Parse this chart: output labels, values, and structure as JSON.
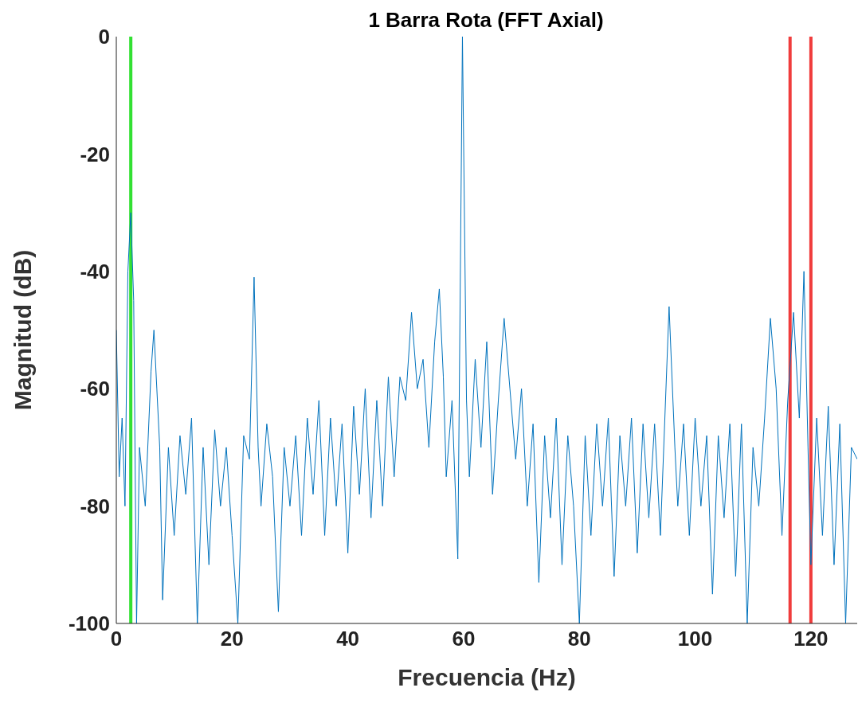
{
  "chart_data": {
    "type": "line",
    "title": "1 Barra Rota (FFT Axial)",
    "xlabel": "Frecuencia (Hz)",
    "ylabel": "Magnitud (dB)",
    "xlim": [
      0,
      128
    ],
    "xticks": [
      0,
      20,
      40,
      60,
      80,
      100,
      120
    ],
    "ylim": [
      -100,
      0
    ],
    "yticks": [
      -100,
      -80,
      -60,
      -40,
      -20,
      0
    ],
    "grid": false,
    "legend": false,
    "marker": "none",
    "line_style": "solid",
    "ref_lines": [
      {
        "axis": "x",
        "value": 2.5,
        "color": "#33e033"
      },
      {
        "axis": "x",
        "value": 116.4,
        "color": "#f03c3c"
      },
      {
        "axis": "x",
        "value": 120,
        "color": "#f03c3c"
      }
    ],
    "series": [
      {
        "color": "#0072bd",
        "x": [
          0,
          0.5,
          1,
          1.5,
          2,
          2.5,
          3,
          3.5,
          4,
          5,
          6,
          6.5,
          7,
          7.5,
          8,
          9,
          10,
          11,
          12,
          13,
          14,
          15,
          16,
          17,
          18,
          19,
          20,
          21,
          22,
          23,
          23.8,
          24.5,
          25,
          26,
          27,
          28,
          29,
          30,
          31,
          32,
          33,
          34,
          35,
          36,
          37,
          38,
          39,
          40,
          41,
          42,
          43,
          44,
          45,
          46,
          47,
          48,
          49,
          50,
          51,
          52,
          53,
          54,
          55,
          55.8,
          56.5,
          57,
          58,
          59,
          59.8,
          60.5,
          61,
          62,
          63,
          64,
          65,
          66,
          67,
          68,
          69,
          70,
          71,
          72,
          73,
          74,
          75,
          76,
          77,
          78,
          79,
          80,
          81,
          82,
          83,
          84,
          85,
          86,
          87,
          88,
          89,
          90,
          91,
          92,
          93,
          94,
          95.5,
          96.5,
          97,
          98,
          99,
          100,
          101,
          102,
          103,
          104,
          105,
          106,
          107,
          108,
          109,
          110,
          111,
          112,
          113,
          114,
          115,
          116,
          117,
          118,
          118.8,
          119.5,
          120,
          121,
          122,
          123,
          124,
          125,
          126,
          127,
          128
        ],
        "values": [
          -50,
          -75,
          -65,
          -80,
          -40,
          -30,
          -45,
          -100,
          -70,
          -80,
          -57,
          -50,
          -60,
          -70,
          -96,
          -70,
          -85,
          -68,
          -78,
          -65,
          -100,
          -70,
          -90,
          -67,
          -80,
          -70,
          -85,
          -100,
          -68,
          -72,
          -41,
          -70,
          -80,
          -66,
          -75,
          -98,
          -70,
          -80,
          -68,
          -85,
          -65,
          -78,
          -62,
          -85,
          -65,
          -80,
          -66,
          -88,
          -63,
          -78,
          -60,
          -82,
          -62,
          -80,
          -58,
          -75,
          -58,
          -62,
          -47,
          -60,
          -55,
          -70,
          -52,
          -43,
          -58,
          -75,
          -62,
          -89,
          0,
          -62,
          -75,
          -55,
          -70,
          -52,
          -78,
          -62,
          -48,
          -60,
          -72,
          -60,
          -80,
          -66,
          -93,
          -68,
          -82,
          -65,
          -90,
          -68,
          -80,
          -100,
          -68,
          -85,
          -66,
          -80,
          -65,
          -92,
          -68,
          -80,
          -65,
          -88,
          -66,
          -82,
          -66,
          -85,
          -46,
          -70,
          -80,
          -66,
          -85,
          -65,
          -80,
          -68,
          -95,
          -68,
          -82,
          -66,
          -92,
          -66,
          -100,
          -70,
          -80,
          -65,
          -48,
          -60,
          -85,
          -62,
          -47,
          -65,
          -40,
          -70,
          -90,
          -65,
          -85,
          -63,
          -90,
          -66,
          -100,
          -70,
          -72
        ]
      }
    ]
  }
}
